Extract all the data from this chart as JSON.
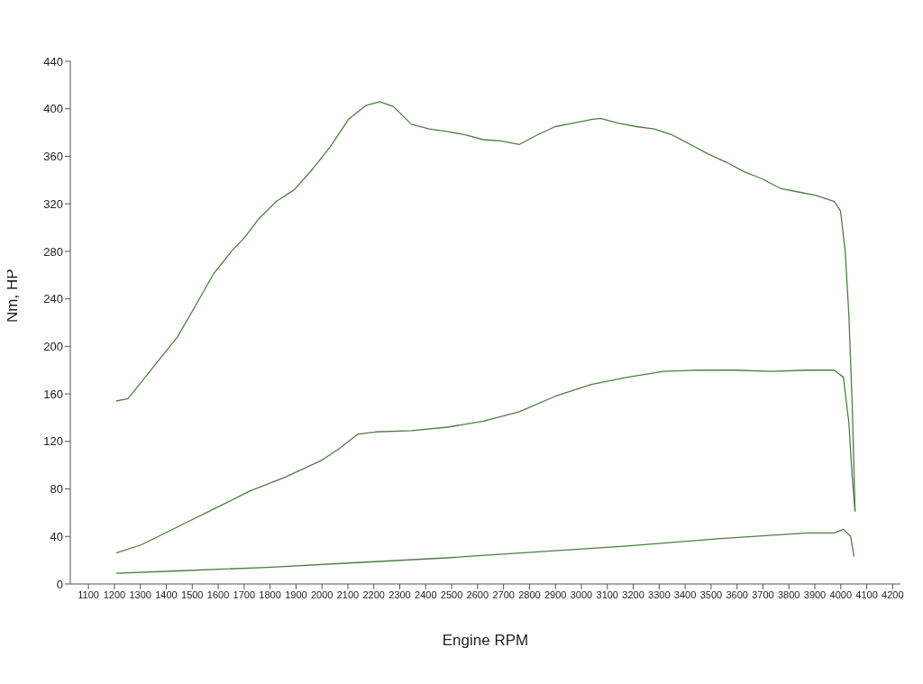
{
  "chart_data": {
    "type": "line",
    "xlabel": "Engine RPM",
    "ylabel": "Nm, HP",
    "xlim": [
      1030,
      4230
    ],
    "ylim": [
      0,
      440
    ],
    "xticks": [
      1100,
      1200,
      1300,
      1400,
      1500,
      1600,
      1700,
      1800,
      1900,
      2000,
      2100,
      2200,
      2300,
      2400,
      2500,
      2600,
      2700,
      2800,
      2900,
      3000,
      3100,
      3200,
      3300,
      3400,
      3500,
      3600,
      3700,
      3800,
      3900,
      4000,
      4100,
      4200
    ],
    "yticks": [
      0,
      40,
      80,
      120,
      160,
      200,
      240,
      280,
      320,
      360,
      400,
      440
    ],
    "grid": false,
    "legend": false,
    "marker": "none",
    "line_style": "solid",
    "series": [
      {
        "color": "#4f7d45",
        "x": [
          1207,
          1252,
          1304,
          1373,
          1443,
          1512,
          1582,
          1651,
          1703,
          1755,
          1824,
          1894,
          1963,
          2032,
          2102,
          2171,
          2223,
          2275,
          2345,
          2414,
          2483,
          2553,
          2622,
          2691,
          2761,
          2830,
          2899,
          2969,
          3038,
          3073,
          3142,
          3212,
          3281,
          3350,
          3420,
          3489,
          3559,
          3628,
          3697,
          3767,
          3836,
          3905,
          3975,
          3999,
          4017,
          4031,
          4044,
          4055
        ],
        "values": [
          154,
          156,
          170,
          189,
          208,
          234,
          261,
          280,
          292,
          307,
          322,
          332,
          349,
          368,
          391,
          403,
          406,
          402,
          387,
          383,
          381,
          378,
          374,
          373,
          370,
          378,
          385,
          388,
          391,
          392,
          388,
          385,
          383,
          378,
          370,
          362,
          355,
          347,
          341,
          333,
          330,
          327,
          322,
          314,
          280,
          227,
          151,
          61
        ]
      },
      {
        "color": "#4f7d45",
        "x": [
          1207,
          1304,
          1443,
          1582,
          1720,
          1859,
          1998,
          2067,
          2137,
          2206,
          2345,
          2483,
          2622,
          2761,
          2899,
          3038,
          3177,
          3316,
          3455,
          3593,
          3732,
          3871,
          3975,
          4010,
          4031,
          4044,
          4055
        ],
        "values": [
          26,
          33,
          48,
          63,
          78,
          90,
          104,
          114,
          126,
          128,
          129,
          132,
          137,
          145,
          158,
          168,
          174,
          179,
          180,
          180,
          179,
          180,
          180,
          174,
          136,
          90,
          61
        ]
      },
      {
        "color": "#4f7d45",
        "x": [
          1207,
          1443,
          1790,
          2137,
          2483,
          2830,
          3177,
          3524,
          3871,
          3975,
          4010,
          4038,
          4051
        ],
        "values": [
          9,
          11,
          14,
          18,
          22,
          27,
          32,
          38,
          43,
          43,
          46,
          40,
          23
        ]
      }
    ]
  }
}
